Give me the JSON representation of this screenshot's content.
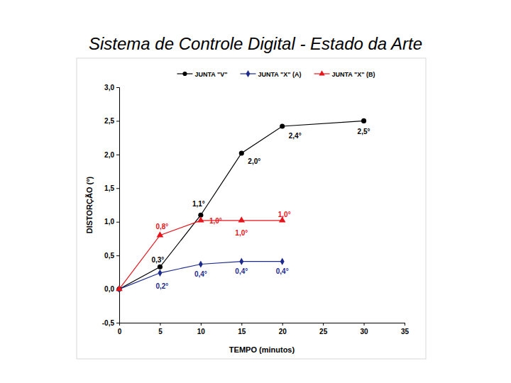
{
  "chart_data": {
    "type": "line",
    "title": "Sistema de Controle Digital - Estado da Arte",
    "x_label": "TEMPO (minutos)",
    "y_label": "DISTORÇÃO (°)",
    "x": [
      0,
      5,
      10,
      15,
      20,
      30
    ],
    "xlim": [
      0,
      35
    ],
    "xticks": [
      0,
      5,
      10,
      15,
      20,
      25,
      30,
      35
    ],
    "ylim": [
      -0.5,
      3.0
    ],
    "yticks": [
      {
        "value": -0.5,
        "label": "-0,5"
      },
      {
        "value": 0,
        "label": "0,0"
      },
      {
        "value": 0.5,
        "label": "0,5"
      },
      {
        "value": 1,
        "label": "1,0"
      },
      {
        "value": 1.5,
        "label": "1,5"
      },
      {
        "value": 2,
        "label": "2,0"
      },
      {
        "value": 2.5,
        "label": "2,5"
      },
      {
        "value": 3,
        "label": "3,0"
      }
    ],
    "grid": false,
    "legend": "top",
    "data_labels": true,
    "series": [
      {
        "name": "JUNTA \"V\"",
        "color": "#000000",
        "marker": "circle",
        "line_style": "solid",
        "values": [
          0,
          0.33,
          1.1,
          2.02,
          2.42,
          2.5
        ],
        "value_labels": [
          null,
          "0,3°",
          "1,1°",
          "2,0°",
          "2,4°",
          "2,5°"
        ]
      },
      {
        "name": "JUNTA \"X\" (A)",
        "color": "#1c2a8c",
        "marker": "diamond",
        "line_style": "solid",
        "values": [
          0,
          0.24,
          0.37,
          0.41,
          0.41,
          null
        ],
        "value_labels": [
          null,
          "0,2°",
          "0,4°",
          "0,4°",
          "0,4°",
          null
        ]
      },
      {
        "name": "JUNTA \"X\" (B)",
        "color": "#e8141b",
        "marker": "triangle",
        "line_style": "solid",
        "values": [
          0,
          0.8,
          1.02,
          1.02,
          1.02,
          null
        ],
        "value_labels": [
          null,
          "0,8°",
          "1,0°",
          "1,0°",
          "1,0°",
          null
        ]
      }
    ]
  }
}
